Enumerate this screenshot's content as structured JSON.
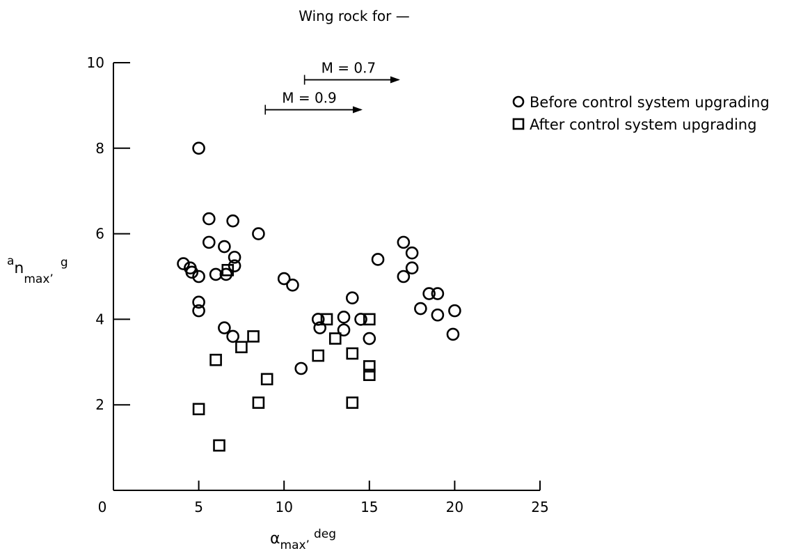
{
  "chart_data": {
    "type": "scatter",
    "title": "Wing rock for —",
    "xlabel": {
      "base": "α",
      "sub": "max’",
      "unit": "deg"
    },
    "ylabel": {
      "base": "a",
      "sub1": "n",
      "sub2": "max’",
      "unit": "g"
    },
    "xlim": [
      0,
      25
    ],
    "ylim": [
      0,
      10
    ],
    "x_ticks": [
      0,
      5,
      10,
      15,
      20,
      25
    ],
    "y_ticks": [
      2,
      4,
      6,
      8,
      10
    ],
    "grid": false,
    "legend_position": "top-right",
    "annotations": [
      {
        "label": "M = 0.7",
        "x_start": 11.2,
        "x_end": 16.8,
        "y": 9.6
      },
      {
        "label": "M = 0.9",
        "x_start": 8.9,
        "x_end": 14.6,
        "y": 8.9
      }
    ],
    "series": [
      {
        "name": "Before control system upgrading",
        "marker": "circle",
        "points": [
          [
            4.1,
            5.3
          ],
          [
            4.5,
            5.2
          ],
          [
            4.6,
            5.1
          ],
          [
            5.0,
            8.0
          ],
          [
            5.0,
            5.0
          ],
          [
            5.0,
            4.4
          ],
          [
            5.0,
            4.2
          ],
          [
            5.6,
            6.35
          ],
          [
            5.6,
            5.8
          ],
          [
            6.0,
            5.05
          ],
          [
            6.5,
            5.7
          ],
          [
            6.6,
            5.05
          ],
          [
            7.0,
            6.3
          ],
          [
            7.1,
            5.45
          ],
          [
            7.1,
            5.25
          ],
          [
            6.5,
            3.8
          ],
          [
            7.0,
            3.6
          ],
          [
            8.5,
            6.0
          ],
          [
            10.0,
            4.95
          ],
          [
            10.5,
            4.8
          ],
          [
            11.0,
            2.85
          ],
          [
            12.0,
            4.0
          ],
          [
            12.1,
            3.8
          ],
          [
            13.5,
            3.75
          ],
          [
            13.5,
            4.05
          ],
          [
            14.0,
            4.5
          ],
          [
            14.5,
            4.0
          ],
          [
            15.0,
            3.55
          ],
          [
            15.5,
            5.4
          ],
          [
            17.0,
            5.8
          ],
          [
            17.0,
            5.0
          ],
          [
            17.5,
            5.55
          ],
          [
            17.5,
            5.2
          ],
          [
            18.0,
            4.25
          ],
          [
            18.5,
            4.6
          ],
          [
            19.0,
            4.6
          ],
          [
            19.0,
            4.1
          ],
          [
            20.0,
            4.2
          ],
          [
            19.9,
            3.65
          ]
        ]
      },
      {
        "name": "After control system upgrading",
        "marker": "square",
        "points": [
          [
            5.0,
            1.9
          ],
          [
            6.0,
            3.05
          ],
          [
            6.2,
            1.05
          ],
          [
            6.7,
            5.15
          ],
          [
            7.5,
            3.35
          ],
          [
            8.2,
            3.6
          ],
          [
            8.5,
            2.05
          ],
          [
            9.0,
            2.6
          ],
          [
            12.0,
            3.15
          ],
          [
            12.5,
            4.0
          ],
          [
            13.0,
            3.55
          ],
          [
            14.0,
            3.2
          ],
          [
            14.0,
            2.05
          ],
          [
            15.0,
            4.0
          ],
          [
            15.0,
            2.9
          ],
          [
            15.0,
            2.7
          ]
        ]
      }
    ]
  }
}
